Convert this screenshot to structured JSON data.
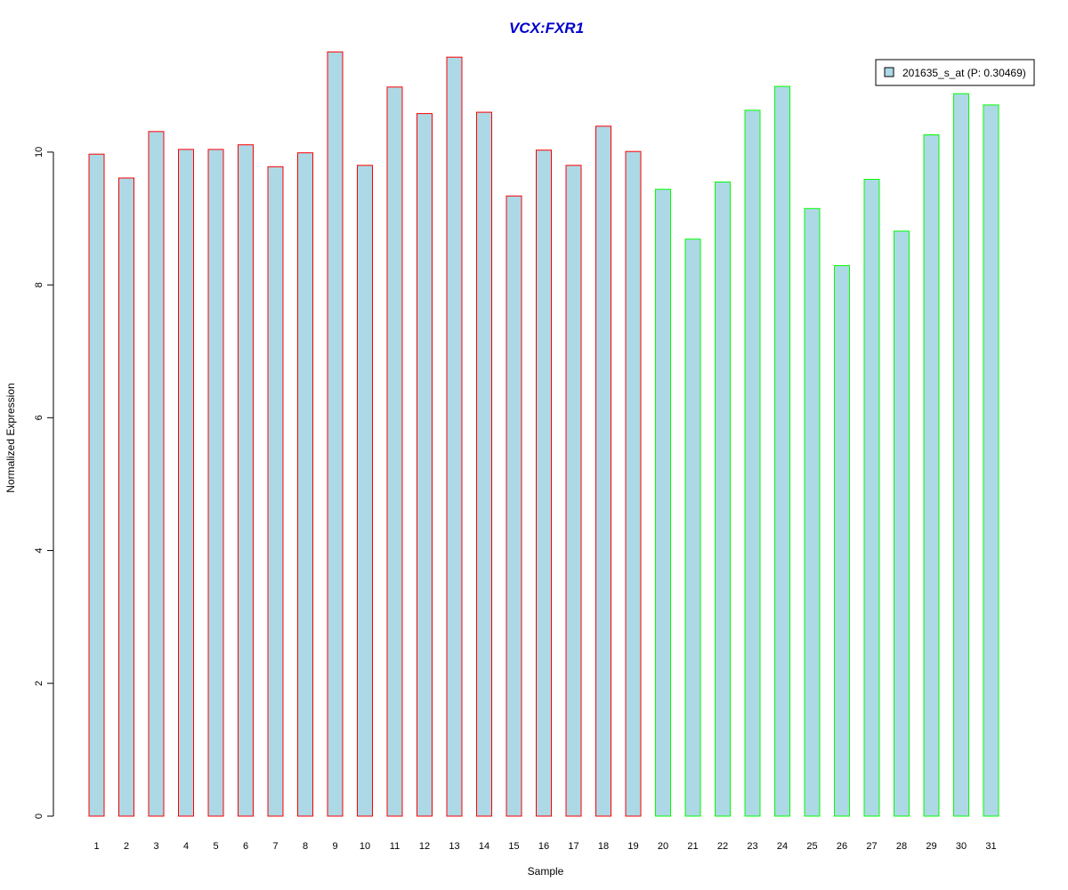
{
  "chart_data": {
    "type": "bar",
    "title": "VCX:FXR1",
    "xlabel": "Sample",
    "ylabel": "Normalized Expression",
    "ylim": [
      0,
      11.5
    ],
    "yticks": [
      0,
      2,
      4,
      6,
      8,
      10
    ],
    "grid": false,
    "legend_position": "top-right",
    "categories": [
      "1",
      "2",
      "3",
      "4",
      "5",
      "6",
      "7",
      "8",
      "9",
      "10",
      "11",
      "12",
      "13",
      "14",
      "15",
      "16",
      "17",
      "18",
      "19",
      "20",
      "21",
      "22",
      "23",
      "24",
      "25",
      "26",
      "27",
      "28",
      "29",
      "30",
      "31"
    ],
    "series": [
      {
        "name": "201635_s_at (P: 0.30469)",
        "values": [
          9.97,
          9.61,
          10.31,
          10.04,
          10.04,
          10.11,
          9.78,
          9.99,
          11.51,
          9.8,
          10.98,
          10.58,
          11.43,
          10.6,
          9.34,
          10.03,
          9.8,
          10.39,
          10.01,
          9.44,
          8.69,
          9.55,
          10.63,
          10.99,
          9.15,
          8.29,
          9.59,
          8.81,
          10.26,
          10.88,
          10.71
        ],
        "group_border_colors": {
          "first_group": "#ff0000",
          "second_group": "#00ff00"
        },
        "first_group_count": 19
      }
    ],
    "colors": {
      "bar_fill": "#add8e6",
      "title": "#0000cd",
      "axis": "#000000"
    }
  }
}
